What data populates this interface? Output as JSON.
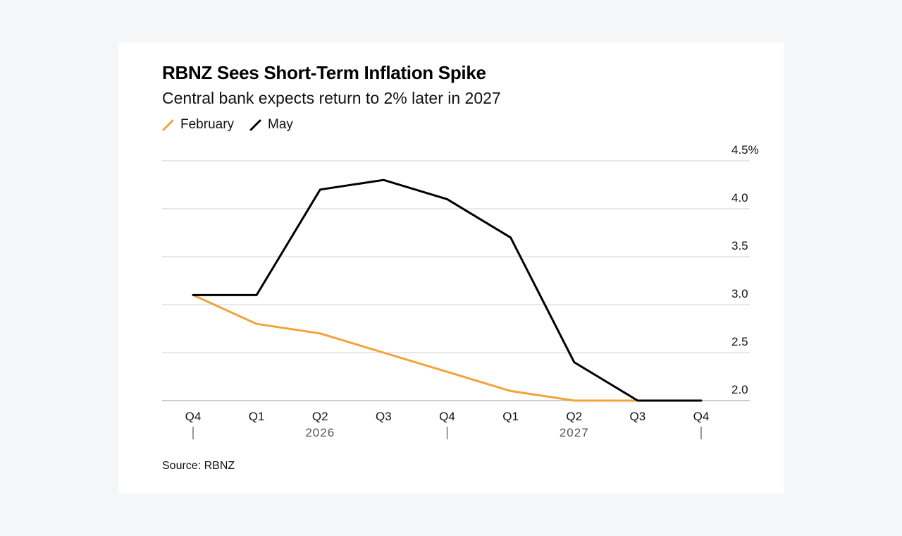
{
  "header": {
    "title": "RBNZ Sees Short-Term Inflation Spike",
    "subtitle": "Central bank expects return to 2% later in 2027"
  },
  "legend": {
    "items": [
      {
        "label": "February",
        "color": "#f0a43a"
      },
      {
        "label": "May",
        "color": "#000000"
      }
    ]
  },
  "footer": {
    "source": "Source: RBNZ"
  },
  "chart_data": {
    "type": "line",
    "categories": [
      "Q4",
      "Q1",
      "Q2",
      "Q3",
      "Q4",
      "Q1",
      "Q2",
      "Q3",
      "Q4"
    ],
    "year_labels": [
      {
        "label": "2026",
        "center_index": 2
      },
      {
        "label": "2027",
        "center_index": 6
      }
    ],
    "year_dividers": [
      0,
      4,
      8
    ],
    "series": [
      {
        "name": "February",
        "color": "#f0a43a",
        "values": [
          3.1,
          2.8,
          2.7,
          2.5,
          2.3,
          2.1,
          2.0,
          2.0,
          2.0
        ]
      },
      {
        "name": "May",
        "color": "#000000",
        "values": [
          3.1,
          3.1,
          4.2,
          4.3,
          4.1,
          3.7,
          2.4,
          2.0,
          2.0
        ]
      }
    ],
    "y_ticks": [
      "2.0",
      "2.5",
      "3.0",
      "3.5",
      "4.0",
      "4.5%"
    ],
    "y_tick_values": [
      2.0,
      2.5,
      3.0,
      3.5,
      4.0,
      4.5
    ],
    "ylim": [
      2.0,
      4.5
    ],
    "y_axis_side": "right",
    "grid": true,
    "legend_position": "top-left"
  }
}
